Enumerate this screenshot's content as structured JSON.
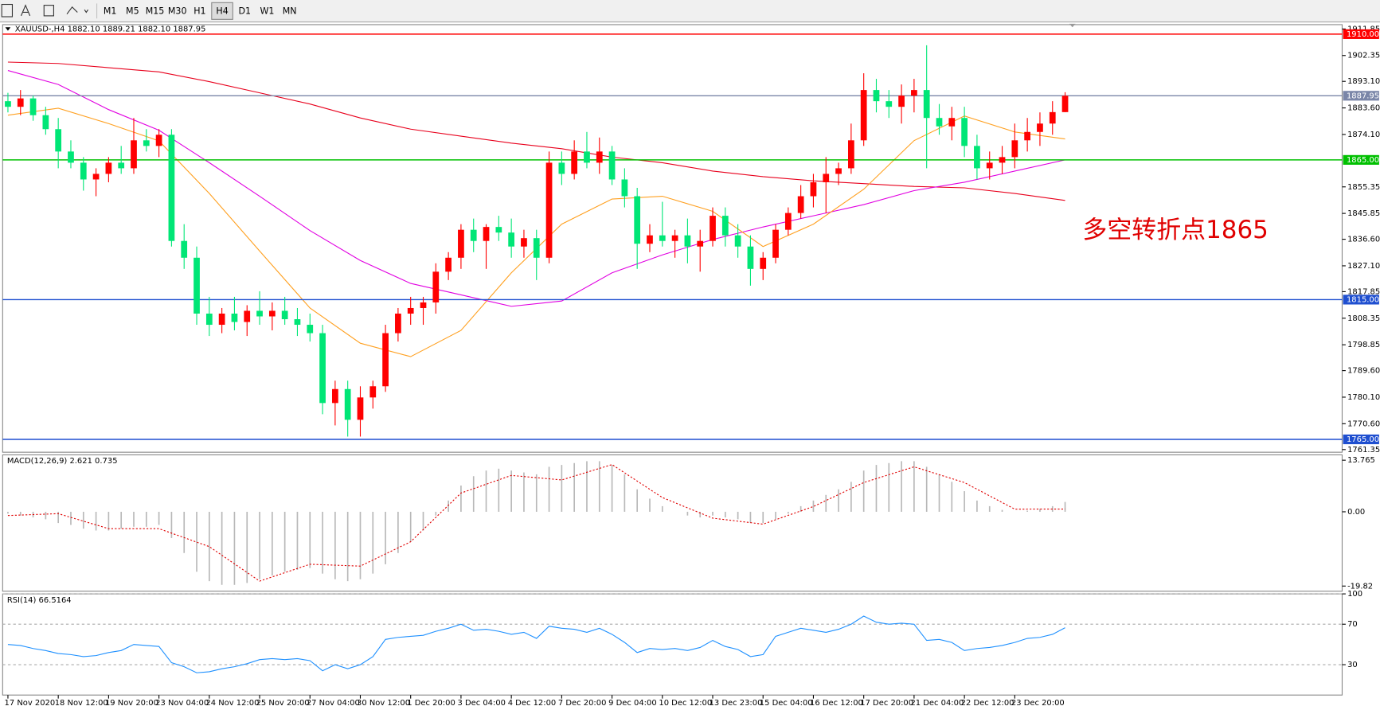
{
  "toolbar": {
    "timeframes": [
      "M1",
      "M5",
      "M15",
      "M30",
      "H1",
      "H4",
      "D1",
      "W1",
      "MN"
    ],
    "active": "H4"
  },
  "chart_data": [
    {
      "type": "candlestick",
      "title": "XAUUSD-,H4  1882.10 1889.21 1882.10 1887.95",
      "annotation": "多空转折点1865",
      "up_color": "#ff0000",
      "down_color": "#00e676",
      "categories": [
        "17 Nov 2020",
        null,
        null,
        null,
        "18 Nov 12:00",
        null,
        null,
        null,
        "19 Nov 20:00",
        null,
        null,
        null,
        "23 Nov 04:00",
        null,
        null,
        null,
        "24 Nov 12:00",
        null,
        null,
        null,
        "25 Nov 20:00",
        null,
        null,
        null,
        "27 Nov 04:00",
        null,
        null,
        null,
        "30 Nov 12:00",
        null,
        null,
        null,
        "1 Dec 20:00",
        null,
        null,
        null,
        "3 Dec 04:00",
        null,
        null,
        null,
        "4 Dec 12:00",
        null,
        null,
        null,
        "7 Dec 20:00",
        null,
        null,
        null,
        "9 Dec 04:00",
        null,
        null,
        null,
        "10 Dec 12:00",
        null,
        null,
        null,
        "13 Dec 23:00",
        null,
        null,
        null,
        "15 Dec 04:00",
        null,
        null,
        null,
        "16 Dec 12:00",
        null,
        null,
        null,
        "17 Dec 20:00",
        null,
        null,
        null,
        "21 Dec 04:00",
        null,
        null,
        null,
        "22 Dec 12:00",
        null,
        null,
        null,
        "23 Dec 20:00",
        null,
        null,
        null,
        null
      ],
      "ohlc": [
        [
          1886,
          1889,
          1882,
          1884
        ],
        [
          1884,
          1890,
          1881,
          1887
        ],
        [
          1887,
          1888,
          1879,
          1881
        ],
        [
          1881,
          1884,
          1874,
          1876
        ],
        [
          1876,
          1880,
          1862,
          1868
        ],
        [
          1868,
          1872,
          1862,
          1864
        ],
        [
          1864,
          1866,
          1854,
          1858
        ],
        [
          1858,
          1862,
          1852,
          1860
        ],
        [
          1860,
          1866,
          1857,
          1864
        ],
        [
          1864,
          1870,
          1860,
          1862
        ],
        [
          1862,
          1880,
          1860,
          1872
        ],
        [
          1872,
          1876,
          1868,
          1870
        ],
        [
          1870,
          1876,
          1866,
          1874
        ],
        [
          1874,
          1876,
          1834,
          1836
        ],
        [
          1836,
          1842,
          1826,
          1830
        ],
        [
          1830,
          1834,
          1806,
          1810
        ],
        [
          1810,
          1816,
          1802,
          1806
        ],
        [
          1806,
          1812,
          1803,
          1810
        ],
        [
          1810,
          1816,
          1804,
          1807
        ],
        [
          1807,
          1813,
          1802,
          1811
        ],
        [
          1811,
          1818,
          1806,
          1809
        ],
        [
          1809,
          1814,
          1804,
          1811
        ],
        [
          1811,
          1816,
          1806,
          1808
        ],
        [
          1808,
          1812,
          1802,
          1806
        ],
        [
          1806,
          1810,
          1800,
          1803
        ],
        [
          1803,
          1806,
          1774,
          1778
        ],
        [
          1778,
          1786,
          1770,
          1783
        ],
        [
          1783,
          1786,
          1766,
          1772
        ],
        [
          1772,
          1784,
          1766,
          1780
        ],
        [
          1780,
          1786,
          1776,
          1784
        ],
        [
          1784,
          1806,
          1782,
          1803
        ],
        [
          1803,
          1812,
          1800,
          1810
        ],
        [
          1810,
          1816,
          1806,
          1812
        ],
        [
          1812,
          1816,
          1806,
          1814
        ],
        [
          1814,
          1828,
          1810,
          1825
        ],
        [
          1825,
          1832,
          1822,
          1830
        ],
        [
          1830,
          1842,
          1826,
          1840
        ],
        [
          1840,
          1844,
          1832,
          1836
        ],
        [
          1836,
          1842,
          1826,
          1841
        ],
        [
          1841,
          1845,
          1836,
          1839
        ],
        [
          1839,
          1844,
          1830,
          1834
        ],
        [
          1834,
          1840,
          1830,
          1837
        ],
        [
          1837,
          1840,
          1822,
          1830
        ],
        [
          1830,
          1868,
          1828,
          1864
        ],
        [
          1864,
          1868,
          1856,
          1860
        ],
        [
          1860,
          1872,
          1858,
          1868
        ],
        [
          1868,
          1875,
          1862,
          1864
        ],
        [
          1864,
          1873,
          1860,
          1868
        ],
        [
          1868,
          1870,
          1856,
          1858
        ],
        [
          1858,
          1862,
          1848,
          1852
        ],
        [
          1852,
          1855,
          1826,
          1835
        ],
        [
          1835,
          1842,
          1832,
          1838
        ],
        [
          1838,
          1850,
          1834,
          1836
        ],
        [
          1836,
          1840,
          1830,
          1838
        ],
        [
          1838,
          1844,
          1828,
          1834
        ],
        [
          1834,
          1840,
          1825,
          1836
        ],
        [
          1836,
          1848,
          1834,
          1845
        ],
        [
          1845,
          1848,
          1834,
          1838
        ],
        [
          1838,
          1842,
          1830,
          1834
        ],
        [
          1834,
          1838,
          1820,
          1826
        ],
        [
          1826,
          1832,
          1822,
          1830
        ],
        [
          1830,
          1842,
          1828,
          1840
        ],
        [
          1840,
          1848,
          1838,
          1846
        ],
        [
          1846,
          1856,
          1844,
          1852
        ],
        [
          1852,
          1860,
          1848,
          1857
        ],
        [
          1857,
          1866,
          1846,
          1860
        ],
        [
          1860,
          1864,
          1856,
          1862
        ],
        [
          1862,
          1878,
          1860,
          1872
        ],
        [
          1872,
          1896,
          1870,
          1890
        ],
        [
          1890,
          1894,
          1882,
          1886
        ],
        [
          1886,
          1890,
          1880,
          1884
        ],
        [
          1884,
          1892,
          1878,
          1888
        ],
        [
          1888,
          1894,
          1882,
          1890
        ],
        [
          1890,
          1906,
          1862,
          1880
        ],
        [
          1880,
          1885,
          1874,
          1877
        ],
        [
          1877,
          1884,
          1872,
          1880
        ],
        [
          1880,
          1884,
          1866,
          1870
        ],
        [
          1870,
          1874,
          1858,
          1862
        ],
        [
          1862,
          1868,
          1858,
          1864
        ],
        [
          1864,
          1870,
          1860,
          1866
        ],
        [
          1866,
          1878,
          1862,
          1872
        ],
        [
          1872,
          1880,
          1868,
          1875
        ],
        [
          1875,
          1882,
          1870,
          1878
        ],
        [
          1878,
          1886,
          1874,
          1882.1
        ],
        [
          1882.1,
          1889.21,
          1882.1,
          1887.95
        ]
      ],
      "lines": [
        {
          "color": "#e8001c",
          "x": [
            0,
            4,
            8,
            12,
            16,
            20,
            24,
            28,
            32,
            36,
            40,
            44,
            48,
            52,
            56,
            60,
            64,
            68,
            72,
            76,
            80,
            84
          ],
          "values": [
            1900,
            1899.5,
            1898,
            1896.5,
            1893,
            1889,
            1885,
            1880,
            1876,
            1873.5,
            1871,
            1869,
            1866,
            1864,
            1861,
            1859,
            1857.5,
            1856.5,
            1855.5,
            1855,
            1853,
            1850.5
          ]
        },
        {
          "color": "#e100e1",
          "x": [
            0,
            4,
            8,
            12,
            16,
            20,
            24,
            28,
            32,
            36,
            40,
            44,
            48,
            52,
            56,
            60,
            64,
            68,
            72,
            76,
            80,
            84
          ],
          "values": [
            1897,
            1892,
            1883,
            1875.6,
            1864,
            1852,
            1839.7,
            1829,
            1820.8,
            1816.7,
            1812.6,
            1814.5,
            1824.6,
            1831,
            1836.5,
            1841,
            1845,
            1849,
            1854,
            1857,
            1861,
            1865
          ]
        },
        {
          "color": "#ffa020",
          "x": [
            0,
            4,
            8,
            12,
            16,
            20,
            24,
            28,
            32,
            36,
            40,
            44,
            48,
            52,
            56,
            60,
            64,
            68,
            72,
            76,
            80,
            84
          ],
          "values": [
            1881,
            1883.5,
            1878,
            1871.8,
            1853,
            1832.4,
            1812,
            1799.4,
            1794.6,
            1804,
            1824.6,
            1842,
            1851,
            1852,
            1846.6,
            1834,
            1842,
            1854.5,
            1871.9,
            1880.7,
            1875,
            1872.5
          ]
        }
      ],
      "levels": [
        {
          "value": 1910,
          "label": "1910.00",
          "color": "#ff0000"
        },
        {
          "value": 1887.95,
          "label": "1887.95",
          "color": "#7a86a8"
        },
        {
          "value": 1865,
          "label": "1865.00",
          "color": "#00c000"
        },
        {
          "value": 1815,
          "label": "1815.00",
          "color": "#1f4fd0"
        },
        {
          "value": 1765,
          "label": "1765.00",
          "color": "#1f4fd0"
        }
      ],
      "ylim": [
        1760.4,
        1913.4
      ],
      "yticks": [
        1911.85,
        1902.35,
        {
          "value": 1893.1,
          "label": "1893.10"
        },
        {
          "value": 1883.6,
          "label": "1883.60"
        },
        {
          "value": 1874.1,
          "label": "1874.10"
        },
        1855.35,
        1845.85,
        {
          "value": 1836.6,
          "label": "1836.60"
        },
        {
          "value": 1827.1,
          "label": "1827.10"
        },
        1817.85,
        1808.35,
        1798.85,
        {
          "value": 1789.6,
          "label": "1789.60"
        },
        {
          "value": 1780.1,
          "label": "1780.10"
        },
        {
          "value": 1770.6,
          "label": "1770.60"
        },
        1761.35
      ]
    },
    {
      "type": "macd",
      "title": "MACD(12,26,9) 2.621 0.735",
      "histogram_color": "#b8b8b8",
      "signal_color": "#e00000",
      "histogram": [
        -0.5,
        -1,
        -1.5,
        -2,
        -3,
        -3.5,
        -4.5,
        -5,
        -5,
        -4.5,
        -4,
        -4,
        -3.5,
        -7,
        -11,
        -16,
        -18.5,
        -19.5,
        -19.5,
        -19,
        -18,
        -17,
        -16,
        -15.5,
        -15,
        -16.5,
        -18,
        -18.5,
        -18,
        -16.5,
        -14,
        -11,
        -8,
        -5,
        -1,
        3,
        7,
        9.5,
        11,
        11.5,
        11,
        10.5,
        10,
        12,
        12.5,
        13,
        13.5,
        13.5,
        12.5,
        10,
        6,
        3.5,
        1.5,
        0,
        -1,
        -1.5,
        -1,
        -1.5,
        -2,
        -3,
        -3,
        -2,
        -0.5,
        1.5,
        3,
        4.5,
        6,
        8,
        11,
        12.5,
        13,
        13.5,
        13.5,
        12,
        10,
        8,
        5.5,
        3,
        1.5,
        0.5,
        0,
        0.3,
        0.8,
        1.5,
        2.621
      ],
      "signal": {
        "x": [
          0,
          4,
          8,
          12,
          16,
          20,
          24,
          28,
          32,
          36,
          40,
          44,
          48,
          52,
          56,
          60,
          64,
          68,
          72,
          76,
          80,
          84
        ],
        "values": [
          -1,
          -0.5,
          -4.5,
          -4.5,
          -9.3,
          -18.5,
          -14,
          -14.5,
          -8,
          5,
          9.7,
          8.5,
          12.6,
          3.8,
          -1.7,
          -3.3,
          1.4,
          7.8,
          12,
          7.8,
          0.7,
          0.735
        ]
      },
      "ylim": [
        -21.2,
        15.19
      ],
      "yticks": [
        13.765,
        {
          "value": 0,
          "label": "0.00"
        },
        -19.82
      ]
    },
    {
      "type": "line",
      "title": "RSI(14) 66.5164",
      "color": "#1e90ff",
      "grid": "dashed",
      "values": [
        50,
        49,
        46,
        44,
        41,
        40,
        38,
        39,
        42,
        44,
        50,
        49,
        48,
        32,
        28,
        22,
        23,
        26,
        28,
        31,
        35,
        36,
        35,
        36,
        34,
        24,
        30,
        26,
        30,
        38,
        55,
        57,
        58,
        59,
        63,
        66,
        70,
        64,
        65,
        63,
        60,
        62,
        56,
        68,
        66,
        65,
        62,
        66,
        60,
        52,
        42,
        46,
        45,
        46,
        44,
        47,
        54,
        48,
        45,
        38,
        40,
        58,
        62,
        66,
        64,
        62,
        65,
        70,
        78,
        72,
        70,
        71,
        70,
        54,
        55,
        52,
        44,
        46,
        47,
        49,
        52,
        56,
        57,
        60,
        66.5164
      ],
      "ylim": [
        0,
        100
      ],
      "yticks": [
        100,
        70,
        30
      ]
    }
  ]
}
